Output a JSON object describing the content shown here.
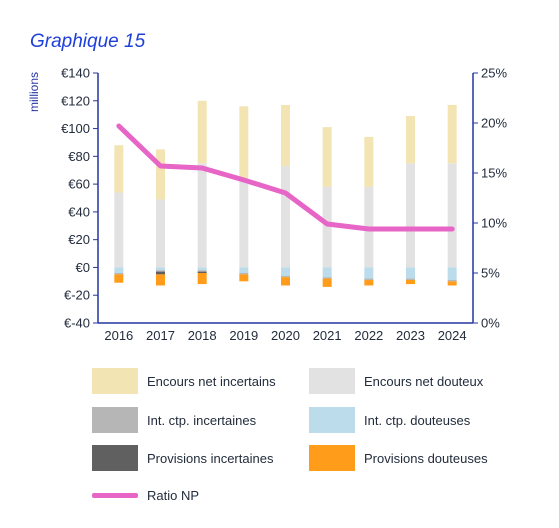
{
  "title": "Graphique 15",
  "chart_data": {
    "type": "bar",
    "title": "Graphique 15",
    "ylabel": "millions",
    "categories": [
      "2016",
      "2017",
      "2018",
      "2019",
      "2020",
      "2021",
      "2022",
      "2023",
      "2024"
    ],
    "ylim": [
      -40,
      140
    ],
    "y2lim": [
      0,
      25
    ],
    "yticks": [
      "€-40",
      "€-20",
      "€0",
      "€20",
      "€40",
      "€60",
      "€80",
      "€100",
      "€120",
      "€140"
    ],
    "y2ticks": [
      "0%",
      "5%",
      "10%",
      "15%",
      "20%",
      "25%"
    ],
    "stacked_positive": [
      {
        "name": "Encours net douteux",
        "color": "#e2e2e2",
        "values": [
          54,
          49,
          75,
          64,
          73,
          58,
          58,
          75,
          75
        ]
      },
      {
        "name": "Encours net incertains",
        "color": "#f3e4b3",
        "values": [
          34,
          36,
          45,
          52,
          44,
          43,
          36,
          34,
          42
        ]
      }
    ],
    "stacked_negative": [
      {
        "name": "Int. ctp. douteuses",
        "color": "#bcdcec",
        "values": [
          -4,
          -2,
          -2,
          -4,
          -6,
          -7,
          -8,
          -8,
          -9
        ]
      },
      {
        "name": "Int. ctp. incertaines",
        "color": "#b6b6b6",
        "values": [
          -1,
          -1,
          -1,
          -1,
          -1,
          -1,
          -1,
          -1,
          -1
        ]
      },
      {
        "name": "Provisions incertaines",
        "color": "#606060",
        "values": [
          0,
          -2,
          -1,
          0,
          0,
          0,
          0,
          0,
          0
        ]
      },
      {
        "name": "Provisions douteuses",
        "color": "#ff9c1a",
        "values": [
          -6,
          -8,
          -8,
          -5,
          -6,
          -6,
          -4,
          -3,
          -3
        ]
      }
    ],
    "line": {
      "name": "Ratio NP",
      "color": "#e765c6",
      "axis": "right",
      "unit": "%",
      "values": [
        19.7,
        15.7,
        15.5,
        14.3,
        13.0,
        9.9,
        9.4,
        9.4,
        9.4
      ]
    },
    "grid": false,
    "legend_position": "bottom"
  },
  "legend": [
    {
      "label": "Encours net incertains",
      "color": "#f3e4b3",
      "kind": "box"
    },
    {
      "label": "Encours net douteux",
      "color": "#e2e2e2",
      "kind": "box"
    },
    {
      "label": "Int. ctp. incertaines",
      "color": "#b6b6b6",
      "kind": "box"
    },
    {
      "label": "Int. ctp. douteuses",
      "color": "#bcdcec",
      "kind": "box"
    },
    {
      "label": "Provisions incertaines",
      "color": "#606060",
      "kind": "box"
    },
    {
      "label": "Provisions douteuses",
      "color": "#ff9c1a",
      "kind": "box"
    },
    {
      "label": "Ratio NP",
      "color": "#e765c6",
      "kind": "line"
    }
  ],
  "colors": {
    "title": "#1e3fd8",
    "axis": "#2536a4",
    "text": "#222c3c"
  }
}
